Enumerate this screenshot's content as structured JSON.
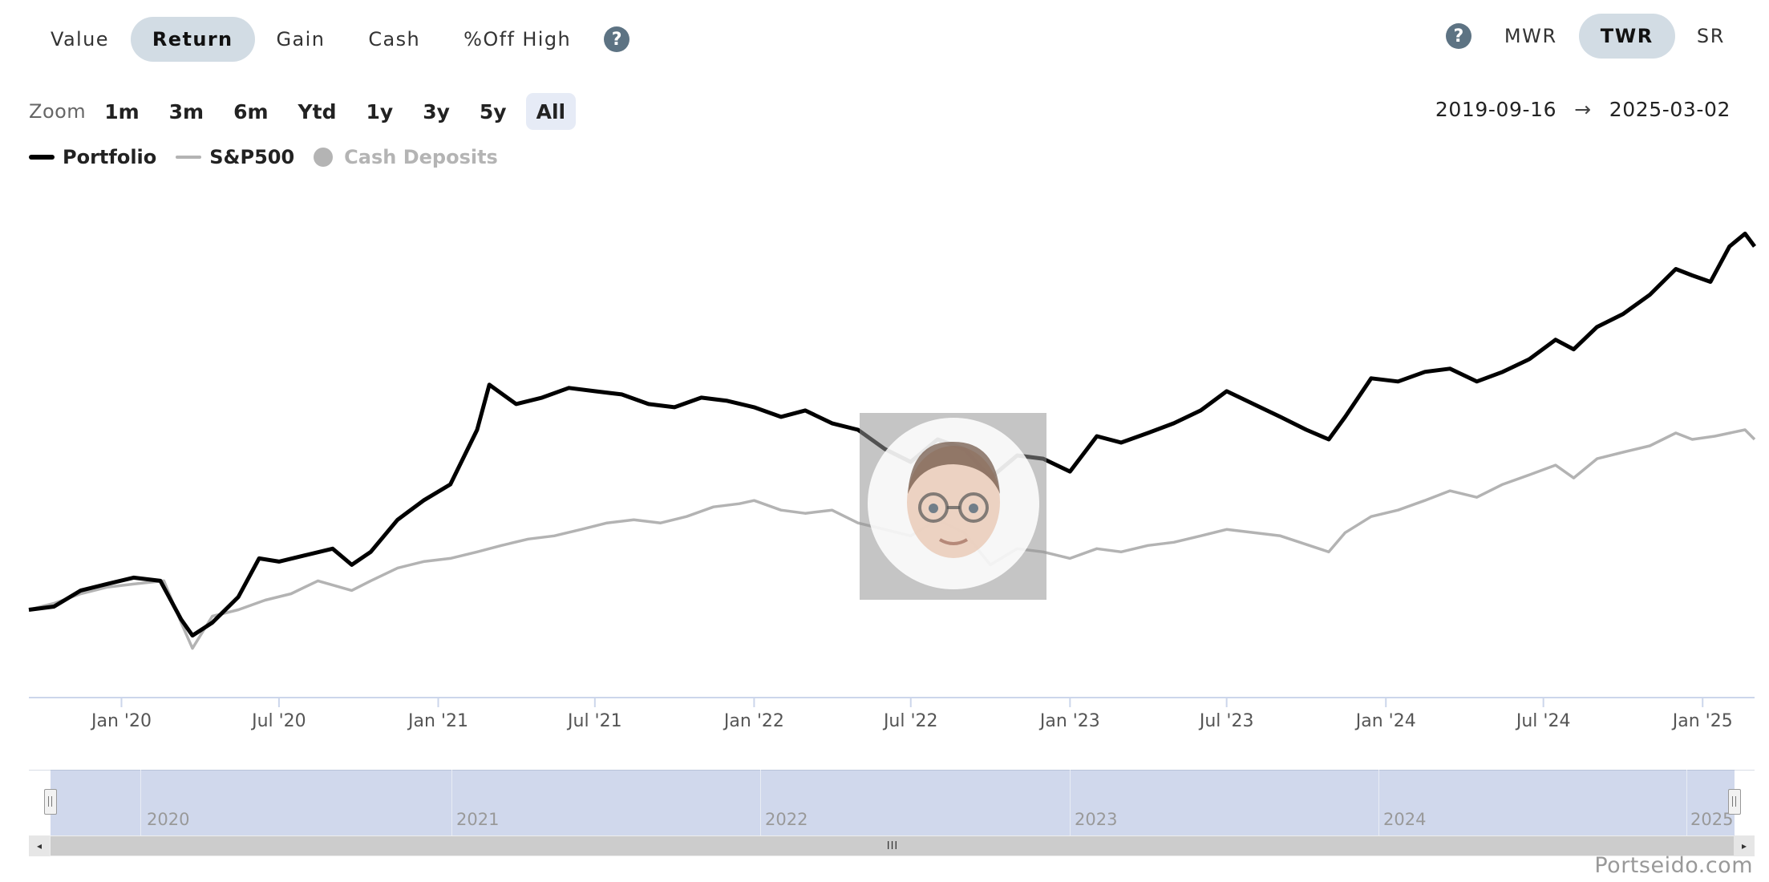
{
  "metric_tabs": [
    {
      "label": "Value",
      "active": false
    },
    {
      "label": "Return",
      "active": true
    },
    {
      "label": "Gain",
      "active": false
    },
    {
      "label": "Cash",
      "active": false
    },
    {
      "label": "%Off High",
      "active": false
    }
  ],
  "help_icon_glyph": "?",
  "return_method_tabs": [
    {
      "label": "MWR",
      "active": false
    },
    {
      "label": "TWR",
      "active": true
    },
    {
      "label": "SR",
      "active": false
    }
  ],
  "zoom": {
    "label": "Zoom",
    "options": [
      {
        "label": "1m",
        "active": false
      },
      {
        "label": "3m",
        "active": false
      },
      {
        "label": "6m",
        "active": false
      },
      {
        "label": "Ytd",
        "active": false
      },
      {
        "label": "1y",
        "active": false
      },
      {
        "label": "3y",
        "active": false
      },
      {
        "label": "5y",
        "active": false
      },
      {
        "label": "All",
        "active": true
      }
    ]
  },
  "date_range": {
    "start": "2019-09-16",
    "arrow": "→",
    "end": "2025-03-02"
  },
  "legend": [
    {
      "label": "Portfolio",
      "color": "#000000",
      "marker": "line",
      "enabled": true
    },
    {
      "label": "S&P500",
      "color": "#b3b3b3",
      "marker": "line",
      "enabled": true
    },
    {
      "label": "Cash Deposits",
      "color": "#b4b4b4",
      "marker": "dot",
      "enabled": false
    }
  ],
  "navigator": {
    "years": [
      "2020",
      "2021",
      "2022",
      "2023",
      "2024",
      "2025"
    ],
    "grip": "III",
    "left_arrow": "◂",
    "right_arrow": "▸"
  },
  "credit": "Portseido.com",
  "chart_data": {
    "type": "line",
    "x_ticks": [
      "Jan '20",
      "Jul '20",
      "Jan '21",
      "Jul '21",
      "Jan '22",
      "Jul '22",
      "Jan '23",
      "Jul '23",
      "Jan '24",
      "Jul '24",
      "Jan '25"
    ],
    "x_range": [
      "2019-09-16",
      "2025-03-02"
    ],
    "grid": false,
    "y_axis_labels": false,
    "legend_position": "top-left",
    "series": [
      {
        "name": "Portfolio",
        "color": "#000000",
        "points": [
          [
            "2019-09-16",
            0.0
          ],
          [
            "2019-10-15",
            0.5
          ],
          [
            "2019-11-15",
            3.0
          ],
          [
            "2019-12-15",
            4.0
          ],
          [
            "2020-01-15",
            5.0
          ],
          [
            "2020-02-15",
            4.5
          ],
          [
            "2020-02-25",
            2.0
          ],
          [
            "2020-03-10",
            -1.5
          ],
          [
            "2020-03-23",
            -4.0
          ],
          [
            "2020-04-15",
            -2.0
          ],
          [
            "2020-05-15",
            2.0
          ],
          [
            "2020-06-08",
            8.0
          ],
          [
            "2020-07-01",
            7.5
          ],
          [
            "2020-08-01",
            8.5
          ],
          [
            "2020-09-01",
            9.5
          ],
          [
            "2020-09-23",
            7.0
          ],
          [
            "2020-10-15",
            9.0
          ],
          [
            "2020-11-15",
            14.0
          ],
          [
            "2020-12-15",
            17.0
          ],
          [
            "2021-01-15",
            19.5
          ],
          [
            "2021-02-15",
            28.0
          ],
          [
            "2021-03-01",
            35.0
          ],
          [
            "2021-04-01",
            32.0
          ],
          [
            "2021-05-01",
            33.0
          ],
          [
            "2021-06-01",
            34.5
          ],
          [
            "2021-07-01",
            34.0
          ],
          [
            "2021-08-01",
            33.5
          ],
          [
            "2021-09-01",
            32.0
          ],
          [
            "2021-10-01",
            31.5
          ],
          [
            "2021-11-01",
            33.0
          ],
          [
            "2021-12-01",
            32.5
          ],
          [
            "2022-01-01",
            31.5
          ],
          [
            "2022-02-01",
            30.0
          ],
          [
            "2022-03-01",
            31.0
          ],
          [
            "2022-04-01",
            29.0
          ],
          [
            "2022-05-01",
            28.0
          ],
          [
            "2022-06-01",
            25.0
          ],
          [
            "2022-07-01",
            23.0
          ],
          [
            "2022-08-01",
            26.5
          ],
          [
            "2022-09-01",
            25.0
          ],
          [
            "2022-10-01",
            20.5
          ],
          [
            "2022-11-01",
            24.0
          ],
          [
            "2022-12-01",
            23.5
          ],
          [
            "2023-01-01",
            21.5
          ],
          [
            "2023-02-01",
            27.0
          ],
          [
            "2023-03-01",
            26.0
          ],
          [
            "2023-04-01",
            27.5
          ],
          [
            "2023-05-01",
            29.0
          ],
          [
            "2023-06-01",
            31.0
          ],
          [
            "2023-07-01",
            34.0
          ],
          [
            "2023-08-01",
            32.0
          ],
          [
            "2023-09-01",
            30.0
          ],
          [
            "2023-10-01",
            28.0
          ],
          [
            "2023-10-27",
            26.5
          ],
          [
            "2023-11-15",
            30.0
          ],
          [
            "2023-12-15",
            36.0
          ],
          [
            "2024-01-15",
            35.5
          ],
          [
            "2024-02-15",
            37.0
          ],
          [
            "2024-03-15",
            37.5
          ],
          [
            "2024-04-15",
            35.5
          ],
          [
            "2024-05-15",
            37.0
          ],
          [
            "2024-06-15",
            39.0
          ],
          [
            "2024-07-15",
            42.0
          ],
          [
            "2024-08-05",
            40.5
          ],
          [
            "2024-09-01",
            44.0
          ],
          [
            "2024-10-01",
            46.0
          ],
          [
            "2024-11-01",
            49.0
          ],
          [
            "2024-12-01",
            53.0
          ],
          [
            "2024-12-20",
            52.0
          ],
          [
            "2025-01-10",
            51.0
          ],
          [
            "2025-02-01",
            56.5
          ],
          [
            "2025-02-19",
            58.5
          ],
          [
            "2025-03-02",
            56.5
          ]
        ]
      },
      {
        "name": "S&P500",
        "color": "#b3b3b3",
        "points": [
          [
            "2019-09-16",
            0.0
          ],
          [
            "2019-10-15",
            1.0
          ],
          [
            "2019-11-15",
            2.5
          ],
          [
            "2019-12-15",
            3.5
          ],
          [
            "2020-01-15",
            4.0
          ],
          [
            "2020-02-19",
            4.5
          ],
          [
            "2020-03-10",
            -2.0
          ],
          [
            "2020-03-23",
            -6.0
          ],
          [
            "2020-04-15",
            -1.0
          ],
          [
            "2020-05-15",
            0.0
          ],
          [
            "2020-06-15",
            1.5
          ],
          [
            "2020-07-15",
            2.5
          ],
          [
            "2020-08-15",
            4.5
          ],
          [
            "2020-09-23",
            3.0
          ],
          [
            "2020-10-15",
            4.5
          ],
          [
            "2020-11-15",
            6.5
          ],
          [
            "2020-12-15",
            7.5
          ],
          [
            "2021-01-15",
            8.0
          ],
          [
            "2021-02-15",
            9.0
          ],
          [
            "2021-03-15",
            10.0
          ],
          [
            "2021-04-15",
            11.0
          ],
          [
            "2021-05-15",
            11.5
          ],
          [
            "2021-06-15",
            12.5
          ],
          [
            "2021-07-15",
            13.5
          ],
          [
            "2021-08-15",
            14.0
          ],
          [
            "2021-09-15",
            13.5
          ],
          [
            "2021-10-15",
            14.5
          ],
          [
            "2021-11-15",
            16.0
          ],
          [
            "2021-12-15",
            16.5
          ],
          [
            "2022-01-01",
            17.0
          ],
          [
            "2022-02-01",
            15.5
          ],
          [
            "2022-03-01",
            15.0
          ],
          [
            "2022-04-01",
            15.5
          ],
          [
            "2022-05-01",
            13.5
          ],
          [
            "2022-06-01",
            12.5
          ],
          [
            "2022-07-01",
            11.5
          ],
          [
            "2022-08-01",
            14.0
          ],
          [
            "2022-09-01",
            12.0
          ],
          [
            "2022-10-01",
            7.0
          ],
          [
            "2022-11-01",
            9.5
          ],
          [
            "2022-12-01",
            9.0
          ],
          [
            "2023-01-01",
            8.0
          ],
          [
            "2023-02-01",
            9.5
          ],
          [
            "2023-03-01",
            9.0
          ],
          [
            "2023-04-01",
            10.0
          ],
          [
            "2023-05-01",
            10.5
          ],
          [
            "2023-06-01",
            11.5
          ],
          [
            "2023-07-01",
            12.5
          ],
          [
            "2023-08-01",
            12.0
          ],
          [
            "2023-09-01",
            11.5
          ],
          [
            "2023-10-27",
            9.0
          ],
          [
            "2023-11-15",
            12.0
          ],
          [
            "2023-12-15",
            14.5
          ],
          [
            "2024-01-15",
            15.5
          ],
          [
            "2024-02-15",
            17.0
          ],
          [
            "2024-03-15",
            18.5
          ],
          [
            "2024-04-15",
            17.5
          ],
          [
            "2024-05-15",
            19.5
          ],
          [
            "2024-06-15",
            21.0
          ],
          [
            "2024-07-15",
            22.5
          ],
          [
            "2024-08-05",
            20.5
          ],
          [
            "2024-09-01",
            23.5
          ],
          [
            "2024-10-01",
            24.5
          ],
          [
            "2024-11-01",
            25.5
          ],
          [
            "2024-12-01",
            27.5
          ],
          [
            "2024-12-20",
            26.5
          ],
          [
            "2025-01-15",
            27.0
          ],
          [
            "2025-02-19",
            28.0
          ],
          [
            "2025-03-02",
            26.5
          ]
        ]
      }
    ]
  }
}
